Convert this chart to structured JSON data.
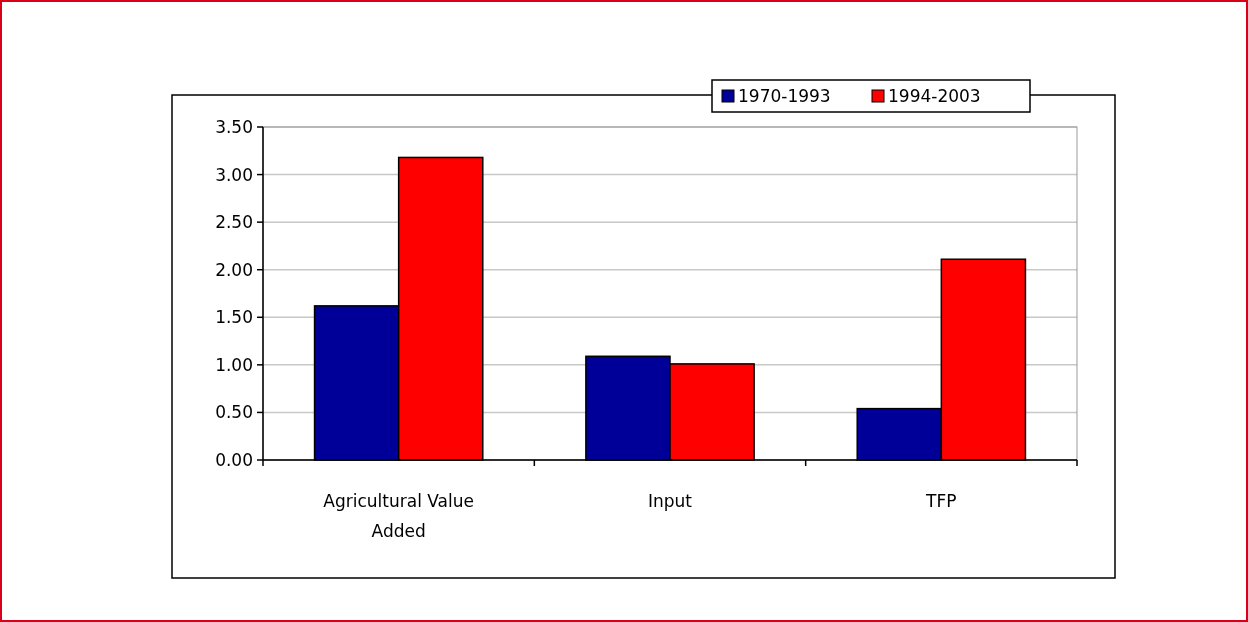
{
  "chart_data": {
    "type": "bar",
    "categories": [
      "Agricultural Value Added",
      "Input",
      "TFP"
    ],
    "series": [
      {
        "name": "1970-1993",
        "color": "#000099",
        "values": [
          1.62,
          1.09,
          0.54
        ]
      },
      {
        "name": "1994-2003",
        "color": "#ff0000",
        "values": [
          3.18,
          1.01,
          2.11
        ]
      }
    ],
    "ylim": [
      0,
      3.5
    ],
    "yticks": [
      {
        "value": 0,
        "label": "0.00"
      },
      {
        "value": 0.5,
        "label": "0.50"
      },
      {
        "value": 1,
        "label": "1.00"
      },
      {
        "value": 1.5,
        "label": "1.50"
      },
      {
        "value": 2,
        "label": "2.00"
      },
      {
        "value": 2.5,
        "label": "2.50"
      },
      {
        "value": 3,
        "label": "3.00"
      },
      {
        "value": 3.5,
        "label": "3.50"
      }
    ],
    "grid": "y",
    "legend": "top right"
  }
}
